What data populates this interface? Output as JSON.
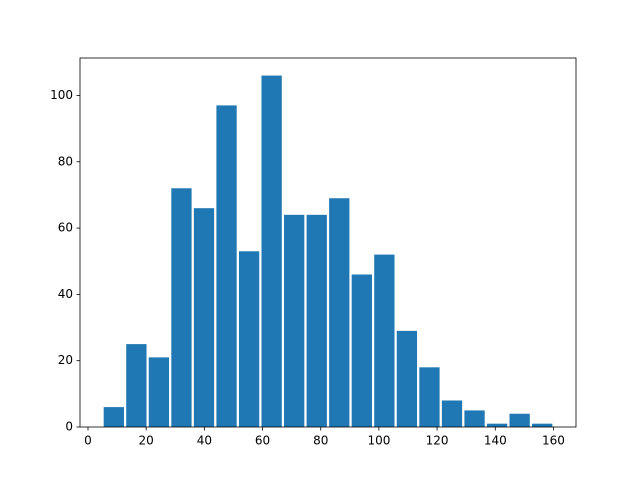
{
  "chart_data": {
    "type": "histogram",
    "bins": [
      5,
      12.75,
      20.5,
      28.25,
      36,
      43.75,
      51.5,
      59.25,
      67,
      74.75,
      82.5,
      90.25,
      98,
      105.75,
      113.5,
      121.25,
      129,
      136.75,
      144.5,
      152.25,
      160
    ],
    "values": [
      6,
      25,
      21,
      72,
      66,
      97,
      53,
      106,
      64,
      64,
      69,
      46,
      52,
      29,
      18,
      8,
      5,
      1,
      4,
      1
    ],
    "color": "#1f77b4",
    "rwidth": 0.9,
    "xlim": [
      -2.75,
      167.75
    ],
    "xticks": [
      0,
      20,
      40,
      60,
      80,
      100,
      120,
      140,
      160
    ],
    "ylim": [
      0,
      111.3
    ],
    "yticks": [
      0,
      20,
      40,
      60,
      80,
      100
    ],
    "grid": false
  }
}
